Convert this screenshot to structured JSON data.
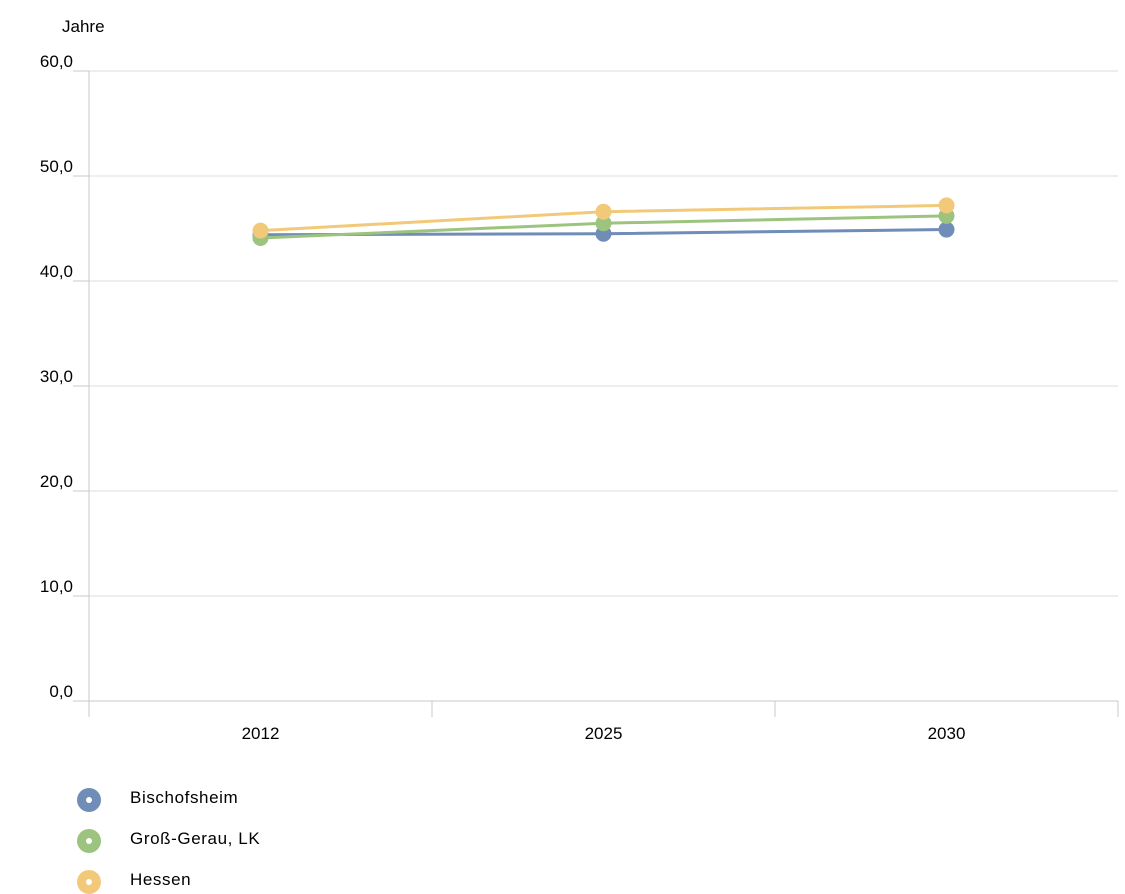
{
  "chart_data": {
    "type": "line",
    "ylabel": "Jahre",
    "xlabel": "",
    "title": "",
    "ylim": [
      0,
      60
    ],
    "yticks": [
      0,
      10,
      20,
      30,
      40,
      50,
      60
    ],
    "ytick_labels": [
      "0,0",
      "10,0",
      "20,0",
      "30,0",
      "40,0",
      "50,0",
      "60,0"
    ],
    "categories": [
      "2012",
      "2025",
      "2030"
    ],
    "grid": "horizontal",
    "legend_position": "bottom-left",
    "series": [
      {
        "name": "Bischofsheim",
        "color": "#6f8db6",
        "values": [
          44.4,
          44.5,
          44.9
        ]
      },
      {
        "name": "Groß-Gerau, LK",
        "color": "#9cc47e",
        "values": [
          44.1,
          45.5,
          46.2
        ]
      },
      {
        "name": "Hessen",
        "color": "#f2c978",
        "values": [
          44.8,
          46.6,
          47.2
        ]
      }
    ]
  }
}
